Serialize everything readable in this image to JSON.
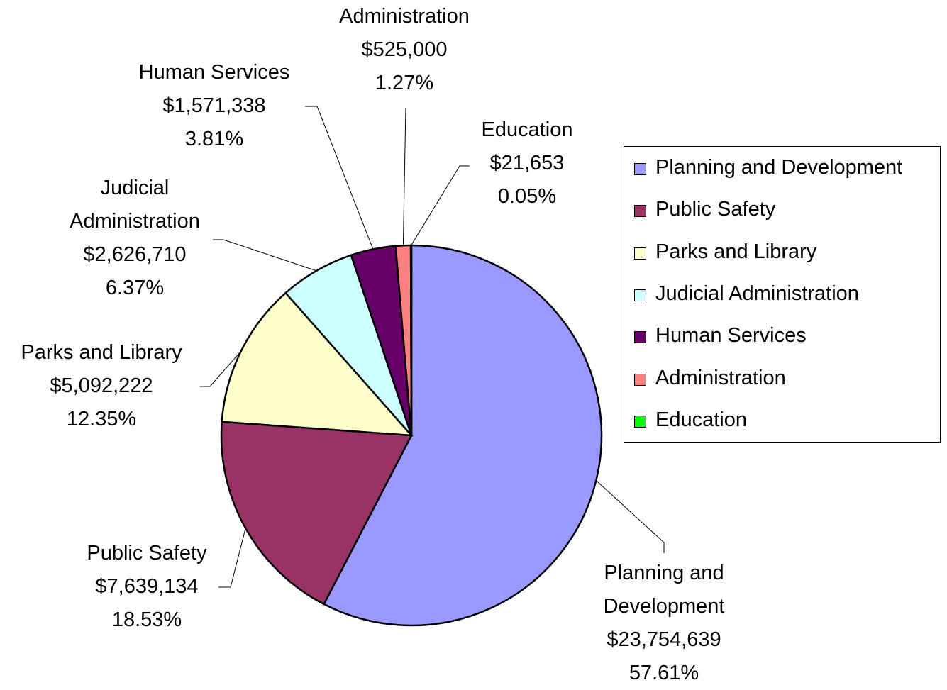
{
  "chart_data": {
    "type": "pie",
    "categories": [
      "Planning and Development",
      "Public Safety",
      "Parks and Library",
      "Judicial Administration",
      "Human Services",
      "Administration",
      "Education"
    ],
    "values": [
      23754639,
      7639134,
      5092222,
      2626710,
      1571338,
      525000,
      21653
    ],
    "value_labels": [
      "$23,754,639",
      "$7,639,134",
      "$5,092,222",
      "$2,626,710",
      "$1,571,338",
      "$525,000",
      "$21,653"
    ],
    "percentages": [
      57.61,
      18.53,
      12.35,
      6.37,
      3.81,
      1.27,
      0.05
    ],
    "percentage_labels": [
      "57.61%",
      "18.53%",
      "12.35%",
      "6.37%",
      "3.81%",
      "1.27%",
      "0.05%"
    ],
    "colors": [
      "#9999ff",
      "#993366",
      "#ffffcc",
      "#ccffff",
      "#660066",
      "#ff8080",
      "#00ff00"
    ],
    "legend": "right"
  }
}
